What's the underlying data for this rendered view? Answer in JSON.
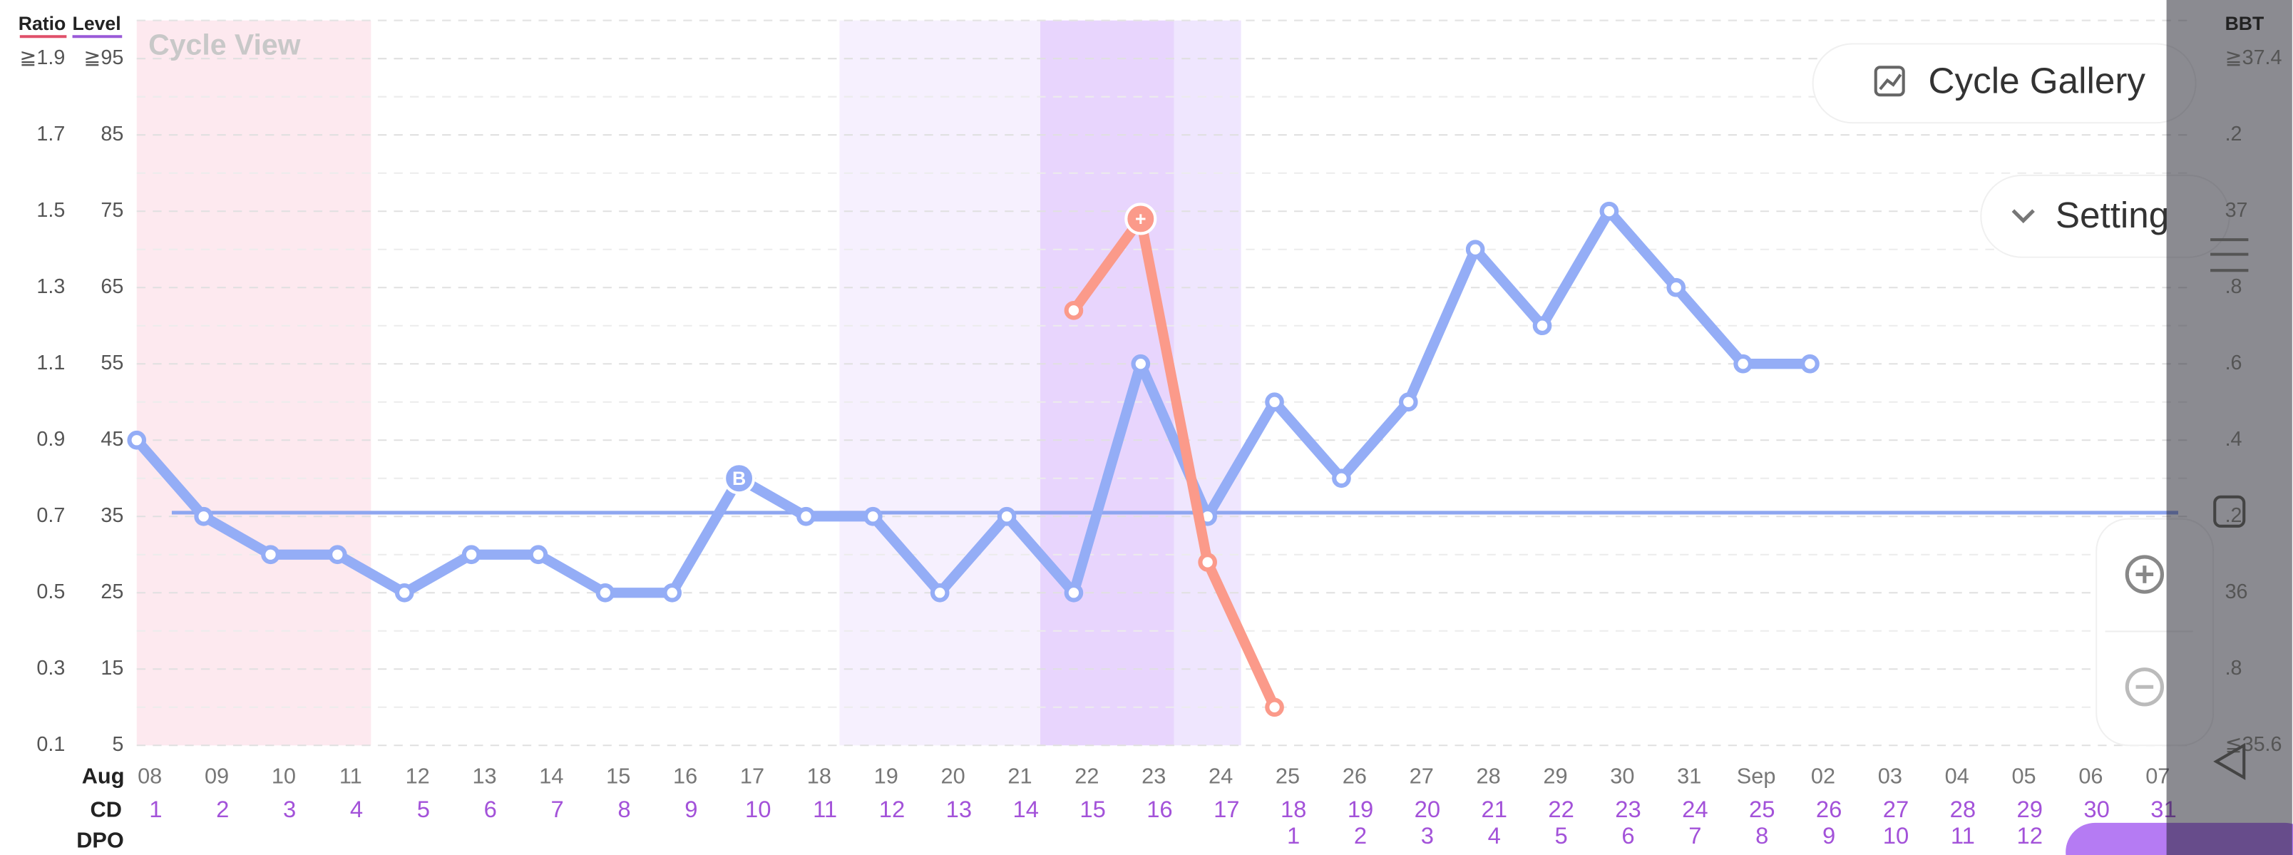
{
  "header": {
    "ratio_label": "Ratio",
    "level_label": "Level",
    "bbt_label": "BBT",
    "view_title": "Cycle View"
  },
  "buttons": {
    "gallery": "Cycle Gallery",
    "setting": "Setting"
  },
  "chart_data": {
    "type": "line",
    "categories": [
      "08",
      "09",
      "10",
      "11",
      "12",
      "13",
      "14",
      "15",
      "16",
      "17",
      "18",
      "19",
      "20",
      "21",
      "22",
      "23",
      "24",
      "25",
      "26",
      "27",
      "28",
      "29",
      "30",
      "31",
      "Sep",
      "02",
      "03",
      "04",
      "05",
      "06",
      "07"
    ],
    "month_label": "Aug",
    "cd_label": "CD",
    "cd": [
      1,
      2,
      3,
      4,
      5,
      6,
      7,
      8,
      9,
      10,
      11,
      12,
      13,
      14,
      15,
      16,
      17,
      18,
      19,
      20,
      21,
      22,
      23,
      24,
      25,
      26,
      27,
      28,
      29,
      30,
      31
    ],
    "dpo_label": "DPO",
    "dpo": [
      null,
      null,
      null,
      null,
      null,
      null,
      null,
      null,
      null,
      null,
      null,
      null,
      null,
      null,
      null,
      null,
      null,
      1,
      2,
      3,
      4,
      5,
      6,
      7,
      8,
      9,
      10,
      11,
      12,
      null,
      null
    ],
    "ylim": [
      5,
      100
    ],
    "yticks": [
      {
        "value": 95,
        "label": "≧95"
      },
      85,
      75,
      65,
      55,
      45,
      35,
      25,
      15,
      5
    ],
    "ratio_lim": [
      0.1,
      2.0
    ],
    "ratio_ticks": [
      {
        "value": 1.9,
        "label": "≧1.9"
      },
      1.7,
      1.5,
      1.3,
      1.1,
      0.9,
      0.7,
      0.5,
      0.3,
      0.1
    ],
    "y2lim": [
      35.6,
      37.5
    ],
    "y2ticks": [
      {
        "value": 37.4,
        "label": "≧37.4"
      },
      {
        "value": 37.2,
        "label": ".2"
      },
      37,
      {
        "value": 36.8,
        "label": ".8"
      },
      {
        "value": 36.6,
        "label": ".6"
      },
      {
        "value": 36.4,
        "label": ".4"
      },
      {
        "value": 36.2,
        "label": ".2"
      },
      36,
      {
        "value": 35.8,
        "label": ".8"
      },
      {
        "value": 35.6,
        "label": "≦35.6"
      }
    ],
    "grid": true,
    "bands": [
      {
        "from": 0,
        "to": 3.5,
        "color": "#fde9ef"
      },
      {
        "from": 10.5,
        "to": 13.5,
        "color": "#f6f0fe"
      },
      {
        "from": 13.5,
        "to": 15.5,
        "color": "#e8d5fd"
      },
      {
        "from": 15.5,
        "to": 16.5,
        "color": "#efe6fe"
      }
    ],
    "coverline": {
      "value": 35.5,
      "color": "#8ea6f0"
    },
    "series": [
      {
        "color": "#94adf6",
        "values": [
          45,
          35,
          30,
          30,
          25,
          30,
          30,
          25,
          25,
          40,
          35,
          35,
          25,
          35,
          25,
          55,
          35,
          50,
          40,
          50,
          70,
          60,
          75,
          65,
          55,
          55,
          null,
          null,
          null,
          null,
          null
        ],
        "point_labels": [
          null,
          null,
          null,
          null,
          null,
          null,
          null,
          null,
          null,
          "B",
          null,
          null,
          null,
          null,
          null,
          null,
          null,
          null,
          null,
          null,
          null,
          null,
          null,
          null,
          null,
          null,
          null,
          null,
          null,
          null,
          null
        ]
      },
      {
        "color": "#fb9a8a",
        "values": [
          null,
          null,
          null,
          null,
          null,
          null,
          null,
          null,
          null,
          null,
          null,
          null,
          null,
          null,
          62,
          74,
          29,
          10,
          null,
          null,
          null,
          null,
          null,
          null,
          null,
          null,
          null,
          null,
          null,
          null,
          null
        ],
        "point_labels": [
          null,
          null,
          null,
          null,
          null,
          null,
          null,
          null,
          null,
          null,
          null,
          null,
          null,
          null,
          null,
          "+",
          null,
          null,
          null,
          null,
          null,
          null,
          null,
          null,
          null,
          null,
          null,
          null,
          null,
          null,
          null
        ]
      }
    ]
  }
}
